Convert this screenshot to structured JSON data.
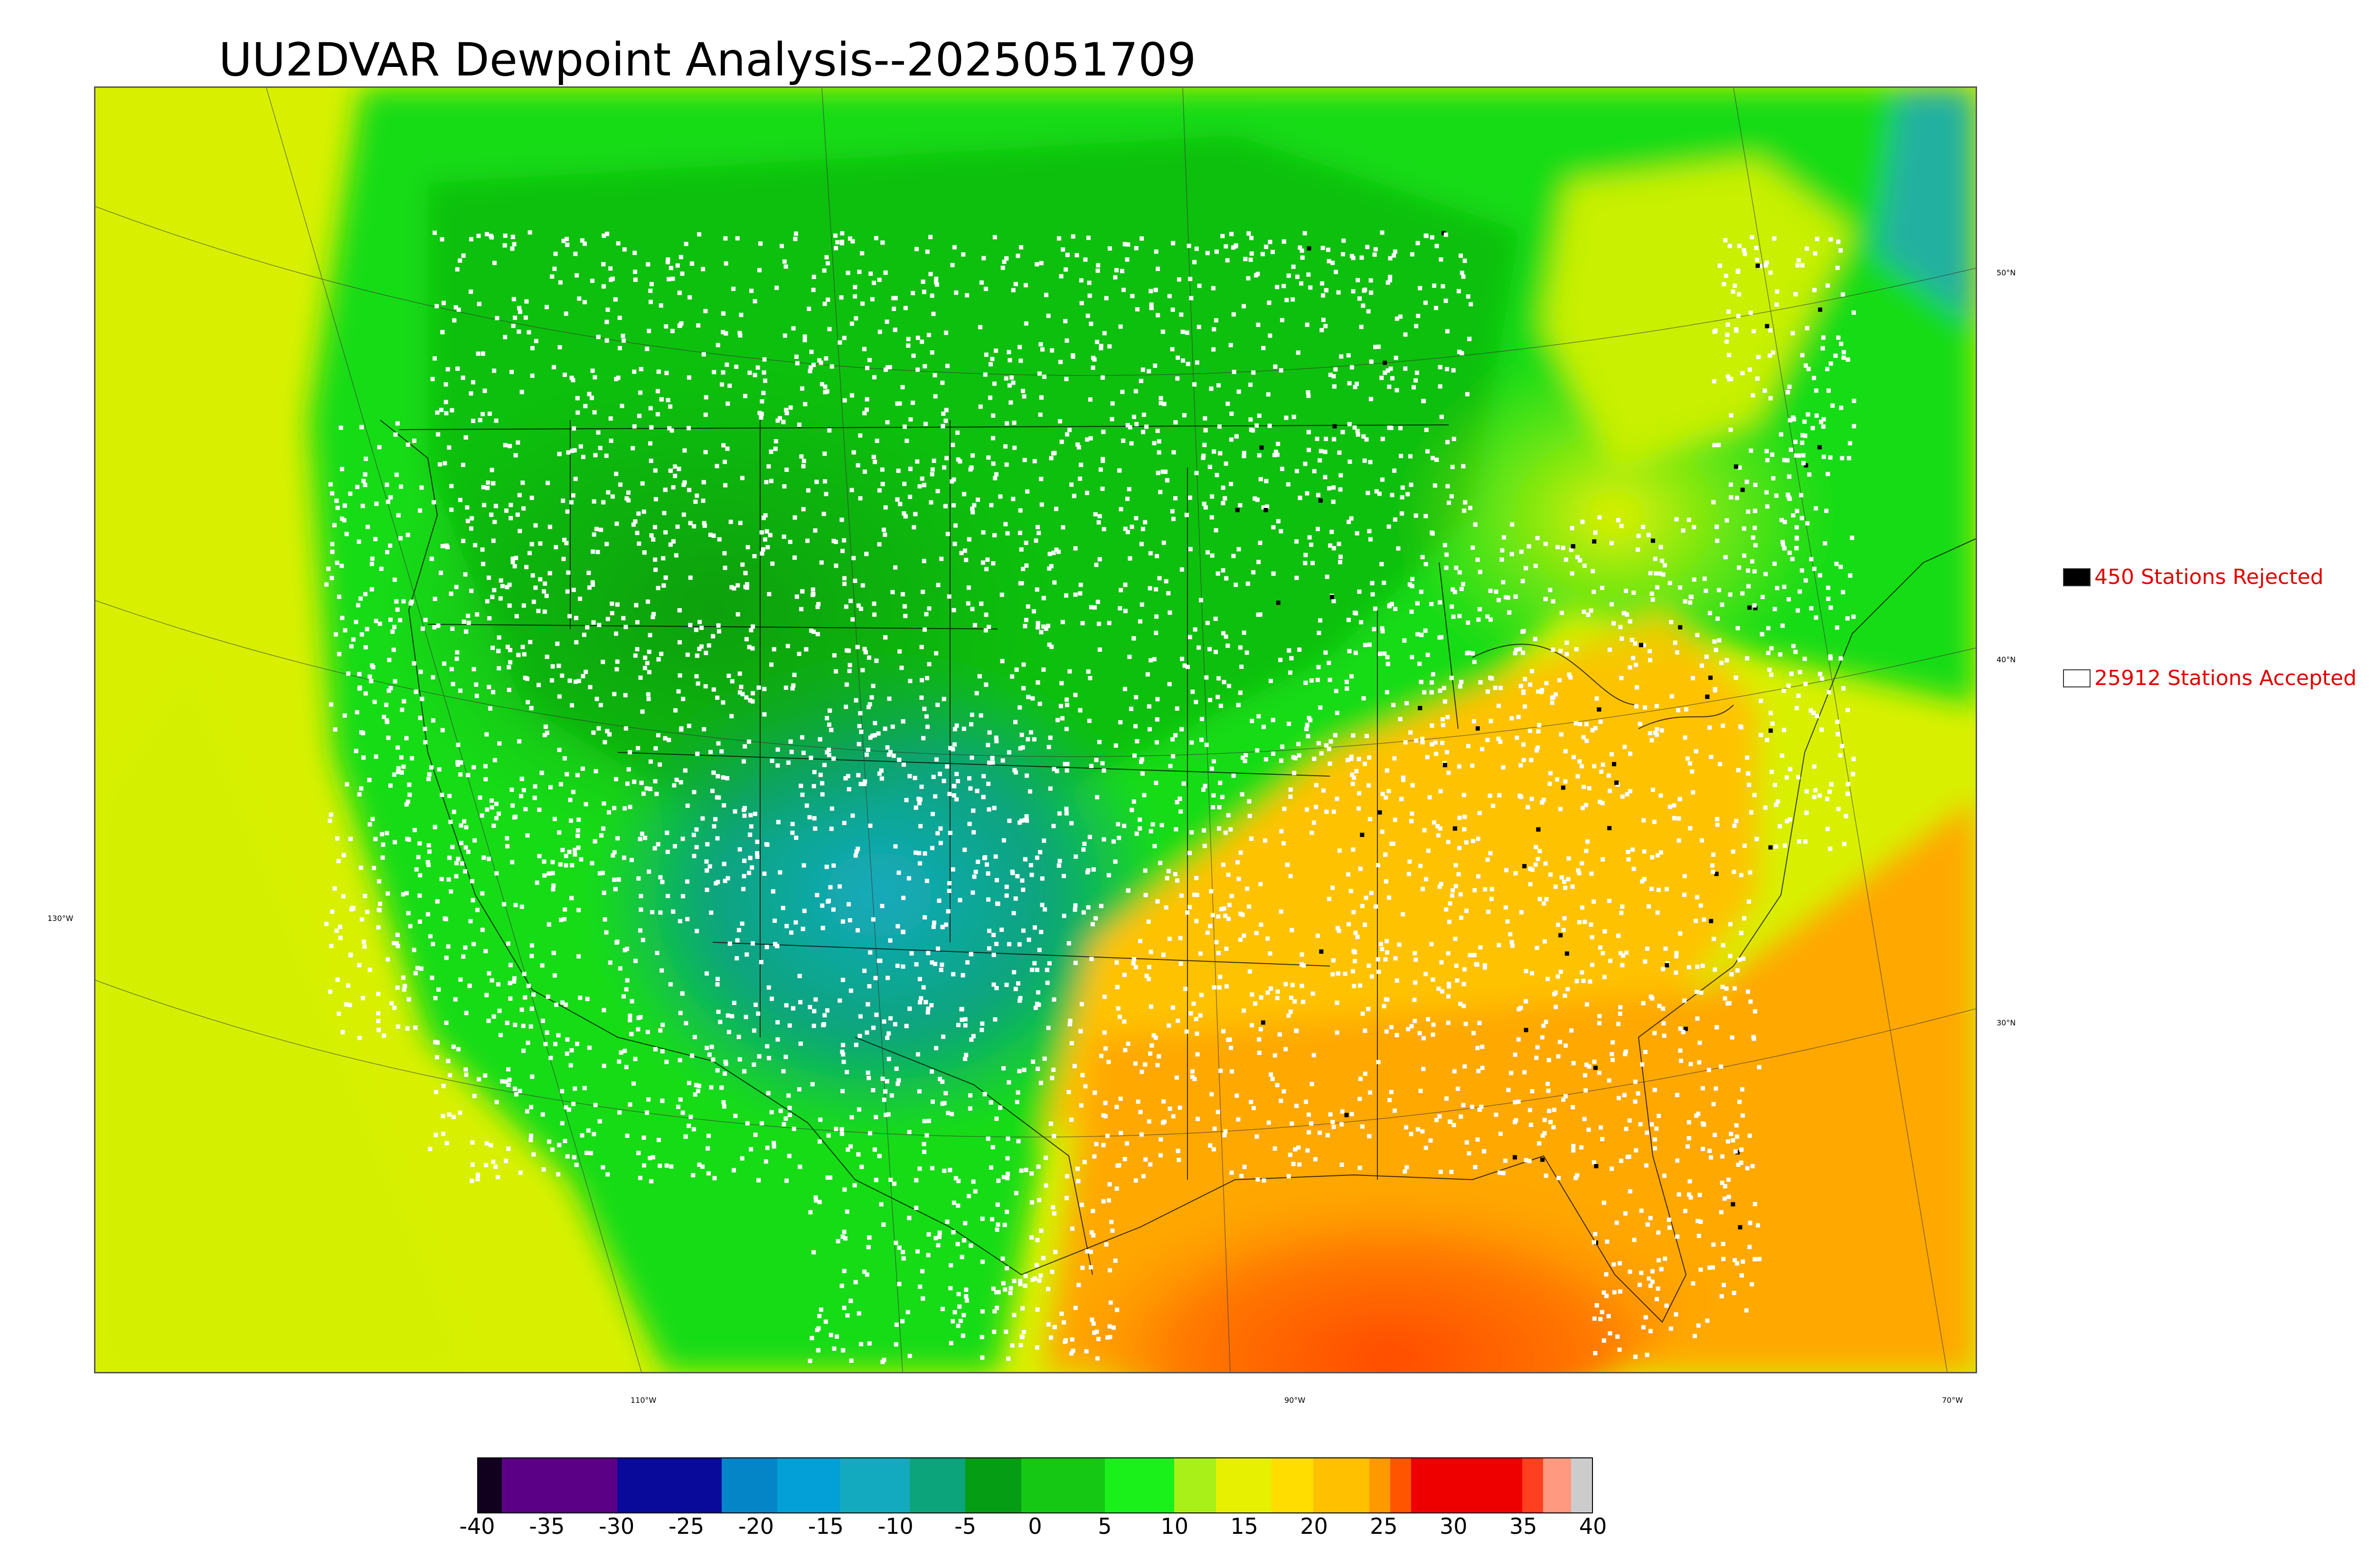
{
  "title": "UU2DVAR Dewpoint Analysis--2025051709",
  "legend": {
    "rejected": {
      "label": "450 Stations Rejected",
      "color": "#000000"
    },
    "accepted": {
      "label": "25912 Stations Accepted",
      "color": "#ffffff"
    }
  },
  "lat_labels": [
    "50°N",
    "40°N",
    "30°N"
  ],
  "lon_labels": [
    "130°W",
    "110°W",
    "90°W",
    "70°W"
  ],
  "colorbar": {
    "ticks": [
      "-40",
      "-35",
      "-30",
      "-25",
      "-20",
      "-15",
      "-10",
      "-5",
      "0",
      "5",
      "10",
      "15",
      "20",
      "25",
      "30",
      "35",
      "40"
    ],
    "range": [
      -40,
      40
    ],
    "colors": [
      {
        "from": -40,
        "to": -38.3,
        "color": "#12001f"
      },
      {
        "from": -38.3,
        "to": -30,
        "color": "#5b0086"
      },
      {
        "from": -30,
        "to": -22.5,
        "color": "#0a0a9a"
      },
      {
        "from": -22.5,
        "to": -18.5,
        "color": "#0485c8"
      },
      {
        "from": -18.5,
        "to": -14,
        "color": "#02a0d6"
      },
      {
        "from": -14,
        "to": -9,
        "color": "#13aac0"
      },
      {
        "from": -9,
        "to": -5,
        "color": "#0ca47a"
      },
      {
        "from": -5,
        "to": -1,
        "color": "#049d14"
      },
      {
        "from": -1,
        "to": 5,
        "color": "#14c814"
      },
      {
        "from": 5,
        "to": 10,
        "color": "#1af01a"
      },
      {
        "from": 10,
        "to": 13,
        "color": "#a8f018"
      },
      {
        "from": 13,
        "to": 17,
        "color": "#e6f000"
      },
      {
        "from": 17,
        "to": 20,
        "color": "#ffdd00"
      },
      {
        "from": 20,
        "to": 24,
        "color": "#ffc000"
      },
      {
        "from": 24,
        "to": 25.5,
        "color": "#ff9900"
      },
      {
        "from": 25.5,
        "to": 27,
        "color": "#ff5500"
      },
      {
        "from": 27,
        "to": 35,
        "color": "#ee0000"
      },
      {
        "from": 35,
        "to": 36.5,
        "color": "#ff4020"
      },
      {
        "from": 36.5,
        "to": 38.5,
        "color": "#ff9980"
      },
      {
        "from": 38.5,
        "to": 40,
        "color": "#cccccc"
      }
    ]
  }
}
